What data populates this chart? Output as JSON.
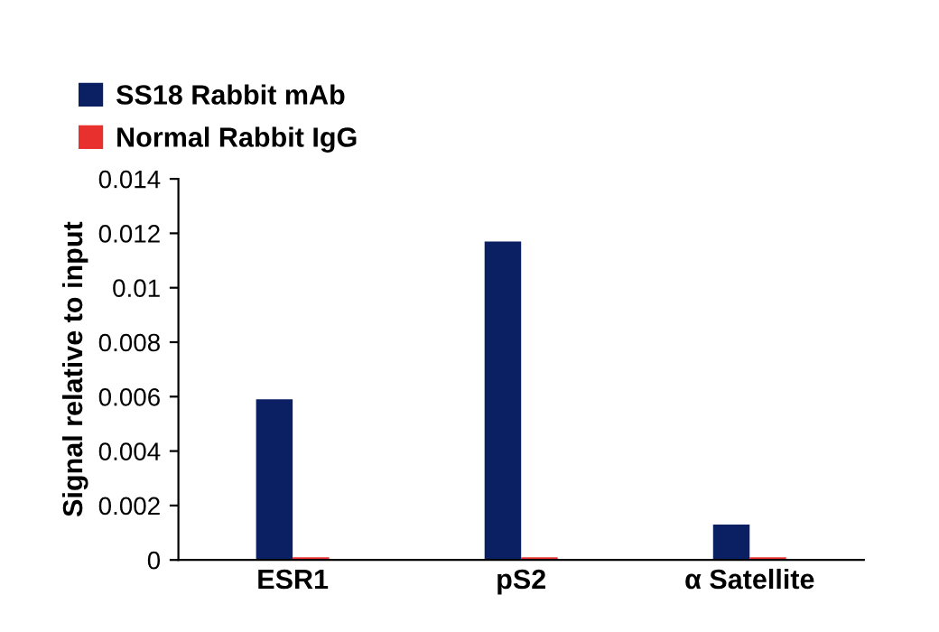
{
  "chart_data": {
    "type": "bar",
    "ylabel": "Signal relative to input",
    "categories": [
      "ESR1",
      "pS2",
      "α Satellite"
    ],
    "series": [
      {
        "name": "SS18 Rabbit mAb",
        "color": "#0b1f63",
        "values": [
          0.0059,
          0.0117,
          0.0013
        ]
      },
      {
        "name": "Normal Rabbit IgG",
        "color": "#e8312f",
        "values": [
          0.0001,
          0.0001,
          0.0001
        ]
      }
    ],
    "ylim": [
      0,
      0.014
    ],
    "yticks": [
      0,
      0.002,
      0.004,
      0.006,
      0.008,
      0.01,
      0.012,
      0.014
    ],
    "grid": false,
    "legend": "top left"
  }
}
